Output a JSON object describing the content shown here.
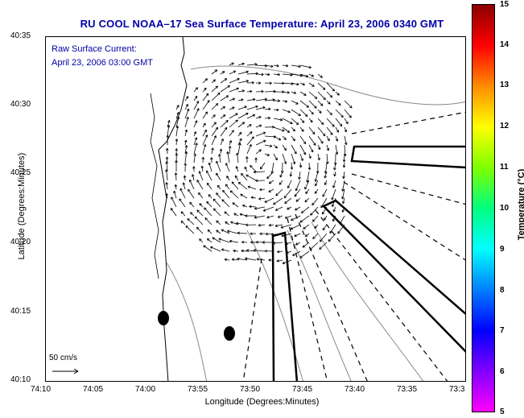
{
  "title": "RU COOL  NOAA–17  Sea Surface Temperature:  April 23, 2006 0340 GMT",
  "annotation": {
    "line1": "Raw Surface Current:",
    "line2": "April 23, 2006 03:00 GMT"
  },
  "axes": {
    "ylabel": "Latitude (Degrees:Minutes)",
    "xlabel": "Longitude (Degrees:Minutes)",
    "yticks": [
      "40:35",
      "40:30",
      "40:25",
      "40:20",
      "40:15",
      "40:10"
    ],
    "xticks": [
      "74:10",
      "74:05",
      "74:00",
      "73:55",
      "73:50",
      "73:45",
      "73:40",
      "73:35",
      "73:3"
    ]
  },
  "scale": {
    "label": "50 cm/s"
  },
  "colorbar": {
    "label": "Temperature (°C)",
    "ticks": [
      "15",
      "14",
      "13",
      "12",
      "11",
      "10",
      "9",
      "8",
      "7",
      "6",
      "5"
    ],
    "colors": [
      "#8b0000",
      "#ff0000",
      "#ff8c00",
      "#ffff00",
      "#7fff00",
      "#00ff7f",
      "#00ffff",
      "#0080ff",
      "#0000ff",
      "#8000ff",
      "#ff00ff"
    ]
  }
}
